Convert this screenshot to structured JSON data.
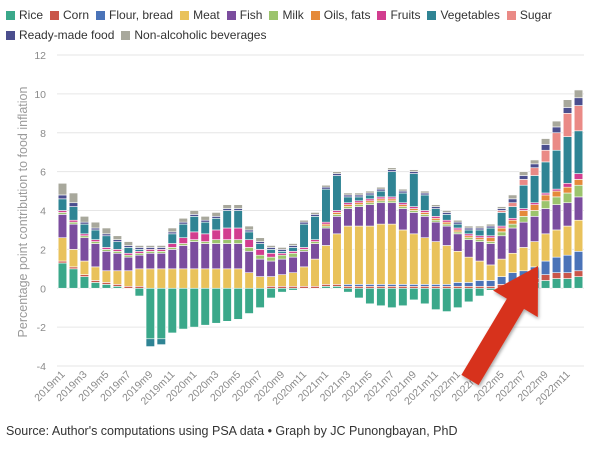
{
  "chart_data": {
    "type": "stacked-bar",
    "ylabel": "Percentage point contribution to food inflation",
    "ylim": [
      -4,
      12
    ],
    "yticks": [
      -4,
      -2,
      0,
      2,
      4,
      6,
      8,
      10,
      12
    ],
    "xticks": [
      "2019m1",
      "2019m3",
      "2019m5",
      "2019m7",
      "2019m9",
      "2019m11",
      "2020m1",
      "2020m3",
      "2020m5",
      "2020m7",
      "2020m9",
      "2020m11",
      "2021m1",
      "2021m3",
      "2021m5",
      "2021m7",
      "2021m9",
      "2021m11",
      "2022m1",
      "2022m3",
      "2022m5",
      "2022m7",
      "2022m9",
      "2022m11"
    ],
    "categories": [
      "2019m1",
      "2019m2",
      "2019m3",
      "2019m4",
      "2019m5",
      "2019m6",
      "2019m7",
      "2019m8",
      "2019m9",
      "2019m10",
      "2019m11",
      "2019m12",
      "2020m1",
      "2020m2",
      "2020m3",
      "2020m4",
      "2020m5",
      "2020m6",
      "2020m7",
      "2020m8",
      "2020m9",
      "2020m10",
      "2020m11",
      "2020m12",
      "2021m1",
      "2021m2",
      "2021m3",
      "2021m4",
      "2021m5",
      "2021m6",
      "2021m7",
      "2021m8",
      "2021m9",
      "2021m10",
      "2021m11",
      "2021m12",
      "2022m1",
      "2022m2",
      "2022m3",
      "2022m4",
      "2022m5",
      "2022m6",
      "2022m7",
      "2022m8",
      "2022m9",
      "2022m10",
      "2022m11",
      "2022m12"
    ],
    "series": [
      {
        "name": "Rice",
        "color": "#3aa88a",
        "values": [
          1.3,
          1.0,
          0.6,
          0.3,
          0.2,
          0.1,
          0.0,
          -0.4,
          -2.6,
          -2.6,
          -2.3,
          -2.1,
          -2.0,
          -1.9,
          -1.8,
          -1.7,
          -1.6,
          -1.3,
          -1.0,
          -0.5,
          -0.2,
          -0.1,
          0.0,
          0.0,
          0.1,
          0.1,
          -0.2,
          -0.5,
          -0.8,
          -0.9,
          -1.0,
          -0.9,
          -0.6,
          -0.8,
          -1.1,
          -1.2,
          -1.0,
          -0.7,
          -0.4,
          -0.1,
          0.0,
          0.1,
          0.2,
          0.3,
          0.4,
          0.5,
          0.5,
          0.6
        ]
      },
      {
        "name": "Corn",
        "color": "#c9564a",
        "values": [
          0.1,
          0.1,
          0.1,
          0.1,
          0.1,
          0.1,
          0.1,
          0.1,
          0.0,
          0.0,
          0.0,
          0.0,
          0.0,
          0.0,
          0.0,
          0.0,
          0.0,
          0.0,
          0.0,
          0.1,
          0.1,
          0.1,
          0.1,
          0.1,
          0.1,
          0.1,
          0.1,
          0.1,
          0.1,
          0.1,
          0.1,
          0.1,
          0.1,
          0.1,
          0.1,
          0.1,
          0.1,
          0.1,
          0.1,
          0.1,
          0.2,
          0.2,
          0.2,
          0.2,
          0.3,
          0.3,
          0.3,
          0.3
        ]
      },
      {
        "name": "Flour, bread",
        "color": "#4a73b8",
        "values": [
          0.0,
          0.0,
          0.0,
          0.0,
          0.0,
          0.0,
          0.0,
          0.0,
          0.0,
          0.0,
          0.0,
          0.0,
          0.0,
          0.0,
          0.0,
          0.0,
          0.0,
          0.0,
          0.0,
          0.0,
          0.0,
          0.0,
          0.0,
          0.0,
          0.0,
          0.0,
          0.1,
          0.1,
          0.1,
          0.1,
          0.1,
          0.1,
          0.1,
          0.1,
          0.1,
          0.1,
          0.2,
          0.2,
          0.3,
          0.3,
          0.4,
          0.5,
          0.5,
          0.6,
          0.7,
          0.8,
          0.9,
          1.0
        ]
      },
      {
        "name": "Meat",
        "color": "#e9c25b",
        "values": [
          1.2,
          0.9,
          0.7,
          0.7,
          0.6,
          0.7,
          0.8,
          0.9,
          1.0,
          1.0,
          1.0,
          1.0,
          1.0,
          1.0,
          1.0,
          1.0,
          1.0,
          0.8,
          0.6,
          0.5,
          0.6,
          0.7,
          1.0,
          1.4,
          2.0,
          2.6,
          3.0,
          3.0,
          3.0,
          3.1,
          3.1,
          2.8,
          2.6,
          2.4,
          2.2,
          2.0,
          1.6,
          1.3,
          1.0,
          0.8,
          0.9,
          1.0,
          1.2,
          1.3,
          1.4,
          1.4,
          1.5,
          1.6
        ]
      },
      {
        "name": "Fish",
        "color": "#7b4d9e",
        "values": [
          1.2,
          1.3,
          1.2,
          1.2,
          1.0,
          0.9,
          0.7,
          0.7,
          0.8,
          0.8,
          1.0,
          1.2,
          1.4,
          1.3,
          1.3,
          1.3,
          1.3,
          1.1,
          0.9,
          0.8,
          0.8,
          0.8,
          0.8,
          0.8,
          0.9,
          0.9,
          0.9,
          1.0,
          1.1,
          1.1,
          1.1,
          1.1,
          1.1,
          1.1,
          1.0,
          1.0,
          0.9,
          0.9,
          1.0,
          1.1,
          1.2,
          1.3,
          1.3,
          1.3,
          1.3,
          1.3,
          1.2,
          1.2
        ]
      },
      {
        "name": "Milk",
        "color": "#9cc46d",
        "values": [
          0.1,
          0.1,
          0.1,
          0.1,
          0.1,
          0.1,
          0.1,
          0.1,
          0.1,
          0.1,
          0.1,
          0.1,
          0.1,
          0.1,
          0.2,
          0.2,
          0.2,
          0.2,
          0.2,
          0.2,
          0.2,
          0.2,
          0.1,
          0.1,
          0.1,
          0.1,
          0.1,
          0.1,
          0.1,
          0.1,
          0.1,
          0.1,
          0.1,
          0.1,
          0.1,
          0.1,
          0.1,
          0.1,
          0.1,
          0.1,
          0.2,
          0.2,
          0.3,
          0.3,
          0.4,
          0.4,
          0.5,
          0.6
        ]
      },
      {
        "name": "Oils, fats",
        "color": "#e58a3a",
        "values": [
          0.0,
          0.0,
          0.0,
          0.0,
          0.0,
          0.0,
          0.0,
          0.0,
          0.0,
          0.0,
          0.0,
          0.0,
          0.0,
          0.0,
          0.0,
          0.0,
          0.0,
          0.0,
          0.0,
          0.0,
          0.0,
          0.0,
          0.0,
          0.0,
          0.1,
          0.1,
          0.1,
          0.1,
          0.1,
          0.1,
          0.1,
          0.1,
          0.1,
          0.1,
          0.1,
          0.1,
          0.1,
          0.1,
          0.1,
          0.2,
          0.2,
          0.2,
          0.3,
          0.3,
          0.3,
          0.3,
          0.3,
          0.3
        ]
      },
      {
        "name": "Fruits",
        "color": "#d23d8f",
        "values": [
          0.1,
          0.1,
          0.1,
          0.1,
          0.1,
          0.1,
          0.1,
          0.1,
          0.1,
          0.1,
          0.2,
          0.3,
          0.4,
          0.4,
          0.5,
          0.6,
          0.6,
          0.4,
          0.3,
          0.2,
          0.1,
          0.1,
          0.1,
          0.1,
          0.1,
          0.1,
          0.1,
          0.1,
          0.1,
          0.1,
          0.1,
          0.1,
          0.1,
          0.1,
          0.1,
          0.1,
          0.1,
          0.1,
          0.1,
          0.1,
          0.1,
          0.1,
          0.1,
          0.1,
          0.1,
          0.1,
          0.2,
          0.3
        ]
      },
      {
        "name": "Vegetables",
        "color": "#2f8494",
        "values": [
          0.6,
          0.7,
          0.5,
          0.5,
          0.6,
          0.4,
          0.3,
          0.1,
          -0.4,
          -0.3,
          0.5,
          0.7,
          0.8,
          0.6,
          0.6,
          0.9,
          0.9,
          0.4,
          0.3,
          0.2,
          0.1,
          0.2,
          1.2,
          1.2,
          1.7,
          1.8,
          0.3,
          0.2,
          0.2,
          0.3,
          1.3,
          0.5,
          1.7,
          0.8,
          0.4,
          0.3,
          0.2,
          0.2,
          0.3,
          0.4,
          0.7,
          0.6,
          1.2,
          1.4,
          1.6,
          2.0,
          2.4,
          2.2
        ]
      },
      {
        "name": "Sugar",
        "color": "#ea8a86",
        "values": [
          0.0,
          0.0,
          0.0,
          0.0,
          0.0,
          0.0,
          0.0,
          0.0,
          0.0,
          0.0,
          0.0,
          0.0,
          0.0,
          0.0,
          0.0,
          0.0,
          0.0,
          0.0,
          0.0,
          0.0,
          0.0,
          0.0,
          0.0,
          0.0,
          0.0,
          0.0,
          0.0,
          0.0,
          0.0,
          0.0,
          0.0,
          0.0,
          0.0,
          0.0,
          0.0,
          0.0,
          0.0,
          0.0,
          0.0,
          0.0,
          0.1,
          0.2,
          0.3,
          0.4,
          0.6,
          0.9,
          1.2,
          1.3
        ]
      },
      {
        "name": "Ready-made food",
        "color": "#4b4e8e",
        "values": [
          0.2,
          0.2,
          0.1,
          0.1,
          0.1,
          0.1,
          0.1,
          0.1,
          0.1,
          0.1,
          0.1,
          0.1,
          0.1,
          0.1,
          0.1,
          0.1,
          0.1,
          0.1,
          0.1,
          0.1,
          0.1,
          0.1,
          0.1,
          0.1,
          0.1,
          0.1,
          0.1,
          0.1,
          0.1,
          0.1,
          0.1,
          0.1,
          0.1,
          0.1,
          0.1,
          0.1,
          0.1,
          0.1,
          0.1,
          0.1,
          0.1,
          0.2,
          0.2,
          0.2,
          0.3,
          0.3,
          0.3,
          0.4
        ]
      },
      {
        "name": "Non-alcoholic beverages",
        "color": "#a8a89c",
        "values": [
          0.6,
          0.5,
          0.3,
          0.3,
          0.3,
          0.2,
          0.2,
          0.1,
          0.1,
          0.1,
          0.2,
          0.2,
          0.2,
          0.2,
          0.2,
          0.2,
          0.2,
          0.2,
          0.2,
          0.1,
          0.1,
          0.1,
          0.1,
          0.1,
          0.1,
          0.1,
          0.1,
          0.1,
          0.1,
          0.1,
          0.1,
          0.1,
          0.1,
          0.1,
          0.1,
          0.1,
          0.1,
          0.1,
          0.1,
          0.1,
          0.1,
          0.2,
          0.2,
          0.2,
          0.3,
          0.3,
          0.4,
          0.4
        ]
      }
    ],
    "legend_position": "top-left",
    "grid": true,
    "annotation": {
      "type": "arrow",
      "color": "#d7321f",
      "points_to": "2022m11"
    }
  },
  "footer": {
    "source": "Source: Author's computations using PSA data • Graph by JC Punongbayan, PhD"
  }
}
